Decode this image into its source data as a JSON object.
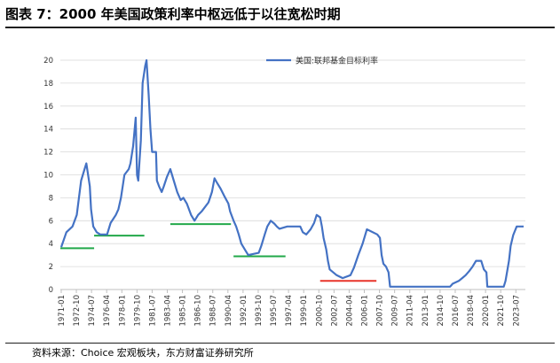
{
  "title": "图表 7：2000 年美国政策利率中枢远低于以往宽松时期",
  "source": "资料来源：Choice 宏观板块，东方财富证券研究所",
  "chart_data": {
    "type": "line",
    "title": "",
    "xlabel": "",
    "ylabel": "",
    "ylim": [
      0,
      20
    ],
    "ytick_labels": [
      "0",
      "2",
      "4",
      "6",
      "8",
      "10",
      "12",
      "14",
      "16",
      "18",
      "20"
    ],
    "x_tick_labels": [
      "1971-01",
      "1972-10",
      "1974-07",
      "1976-04",
      "1978-01",
      "1979-10",
      "1981-07",
      "1983-04",
      "1985-01",
      "1986-10",
      "1988-07",
      "1990-04",
      "1992-01",
      "1993-10",
      "1995-07",
      "1997-04",
      "1999-01",
      "2000-10",
      "2002-07",
      "2004-04",
      "2006-01",
      "2007-10",
      "2009-07",
      "2011-04",
      "2013-01",
      "2014-10",
      "2016-07",
      "2018-04",
      "2020-01",
      "2021-10",
      "2023-07"
    ],
    "x_tick_years": [
      1971.0,
      1972.75,
      1974.5,
      1976.25,
      1978.0,
      1979.75,
      1981.5,
      1983.25,
      1985.0,
      1986.75,
      1988.5,
      1990.25,
      1992.0,
      1993.75,
      1995.5,
      1997.25,
      1999.0,
      2000.75,
      2002.5,
      2004.25,
      2006.0,
      2007.75,
      2009.5,
      2011.25,
      2013.0,
      2014.75,
      2016.5,
      2018.25,
      2020.0,
      2021.75,
      2023.5
    ],
    "xlim": [
      1970.9,
      2024.6
    ],
    "grid": "horizontal",
    "legend_position": "top-right",
    "series": [
      {
        "name": "美国:联邦基金目标利率",
        "color": "#4472c4",
        "points": [
          [
            1971.0,
            3.7
          ],
          [
            1971.6,
            5.0
          ],
          [
            1972.3,
            5.5
          ],
          [
            1972.8,
            6.5
          ],
          [
            1973.3,
            9.5
          ],
          [
            1973.7,
            10.5
          ],
          [
            1973.9,
            11.0
          ],
          [
            1974.3,
            9.0
          ],
          [
            1974.45,
            7.0
          ],
          [
            1974.7,
            5.5
          ],
          [
            1975.1,
            5.0
          ],
          [
            1975.5,
            4.8
          ],
          [
            1976.3,
            4.8
          ],
          [
            1976.7,
            5.8
          ],
          [
            1977.3,
            6.5
          ],
          [
            1977.6,
            7.0
          ],
          [
            1977.9,
            8.0
          ],
          [
            1978.3,
            10.0
          ],
          [
            1978.8,
            10.5
          ],
          [
            1979.0,
            11.0
          ],
          [
            1979.3,
            12.5
          ],
          [
            1979.6,
            15.0
          ],
          [
            1979.75,
            10.0
          ],
          [
            1979.9,
            9.5
          ],
          [
            1980.2,
            13.0
          ],
          [
            1980.4,
            18.0
          ],
          [
            1980.7,
            19.5
          ],
          [
            1980.85,
            20.0
          ],
          [
            1981.1,
            17.0
          ],
          [
            1981.3,
            14.0
          ],
          [
            1981.5,
            12.0
          ],
          [
            1981.8,
            12.0
          ],
          [
            1981.95,
            12.0
          ],
          [
            1982.05,
            9.5
          ],
          [
            1982.3,
            9.0
          ],
          [
            1982.6,
            8.5
          ],
          [
            1982.85,
            9.0
          ],
          [
            1983.2,
            9.8
          ],
          [
            1983.6,
            10.5
          ],
          [
            1984.0,
            9.5
          ],
          [
            1984.4,
            8.5
          ],
          [
            1984.8,
            7.8
          ],
          [
            1985.1,
            8.0
          ],
          [
            1985.5,
            7.5
          ],
          [
            1986.0,
            6.5
          ],
          [
            1986.4,
            6.0
          ],
          [
            1986.8,
            6.5
          ],
          [
            1987.2,
            6.8
          ],
          [
            1987.6,
            7.2
          ],
          [
            1988.0,
            7.6
          ],
          [
            1988.4,
            8.5
          ],
          [
            1988.7,
            9.7
          ],
          [
            1989.0,
            9.3
          ],
          [
            1989.4,
            8.8
          ],
          [
            1989.8,
            8.2
          ],
          [
            1990.3,
            7.5
          ],
          [
            1990.5,
            6.8
          ],
          [
            1990.9,
            6.0
          ],
          [
            1991.2,
            5.5
          ],
          [
            1991.5,
            4.8
          ],
          [
            1991.8,
            4.0
          ],
          [
            1992.2,
            3.5
          ],
          [
            1992.6,
            3.0
          ],
          [
            1993.8,
            3.2
          ],
          [
            1994.1,
            3.8
          ],
          [
            1994.5,
            4.8
          ],
          [
            1994.8,
            5.5
          ],
          [
            1995.2,
            6.0
          ],
          [
            1995.6,
            5.75
          ],
          [
            1995.9,
            5.5
          ],
          [
            1996.2,
            5.3
          ],
          [
            1997.1,
            5.5
          ],
          [
            1998.6,
            5.5
          ],
          [
            1998.9,
            5.0
          ],
          [
            1999.3,
            4.8
          ],
          [
            1999.8,
            5.25
          ],
          [
            2000.2,
            5.8
          ],
          [
            2000.5,
            6.5
          ],
          [
            2000.9,
            6.3
          ],
          [
            2001.1,
            5.5
          ],
          [
            2001.3,
            4.5
          ],
          [
            2001.6,
            3.5
          ],
          [
            2001.8,
            2.5
          ],
          [
            2002.0,
            1.75
          ],
          [
            2002.8,
            1.25
          ],
          [
            2003.5,
            1.0
          ],
          [
            2004.4,
            1.25
          ],
          [
            2004.8,
            1.9
          ],
          [
            2005.3,
            3.0
          ],
          [
            2005.8,
            4.0
          ],
          [
            2006.3,
            5.25
          ],
          [
            2007.5,
            4.8
          ],
          [
            2007.8,
            4.5
          ],
          [
            2008.0,
            3.0
          ],
          [
            2008.2,
            2.25
          ],
          [
            2008.5,
            2.0
          ],
          [
            2008.8,
            1.5
          ],
          [
            2008.97,
            0.25
          ],
          [
            2015.9,
            0.25
          ],
          [
            2016.2,
            0.5
          ],
          [
            2016.9,
            0.75
          ],
          [
            2017.3,
            1.0
          ],
          [
            2017.7,
            1.25
          ],
          [
            2018.1,
            1.6
          ],
          [
            2018.5,
            2.0
          ],
          [
            2018.9,
            2.5
          ],
          [
            2019.5,
            2.5
          ],
          [
            2019.8,
            1.75
          ],
          [
            2020.1,
            1.5
          ],
          [
            2020.2,
            0.25
          ],
          [
            2022.1,
            0.25
          ],
          [
            2022.3,
            0.75
          ],
          [
            2022.5,
            1.6
          ],
          [
            2022.7,
            2.5
          ],
          [
            2022.9,
            3.8
          ],
          [
            2023.2,
            4.75
          ],
          [
            2023.6,
            5.5
          ],
          [
            2024.4,
            5.5
          ]
        ]
      }
    ],
    "reference_segments": [
      {
        "x": [
          1970.9,
          1974.8
        ],
        "y": 3.6,
        "color": "#22a84a"
      },
      {
        "x": [
          1974.8,
          1980.6
        ],
        "y": 4.7,
        "color": "#22a84a"
      },
      {
        "x": [
          1983.6,
          1990.6
        ],
        "y": 5.7,
        "color": "#22a84a"
      },
      {
        "x": [
          1990.9,
          1996.9
        ],
        "y": 2.9,
        "color": "#22a84a"
      },
      {
        "x": [
          2000.9,
          2007.4
        ],
        "y": 0.75,
        "color": "#e8332a"
      }
    ]
  }
}
